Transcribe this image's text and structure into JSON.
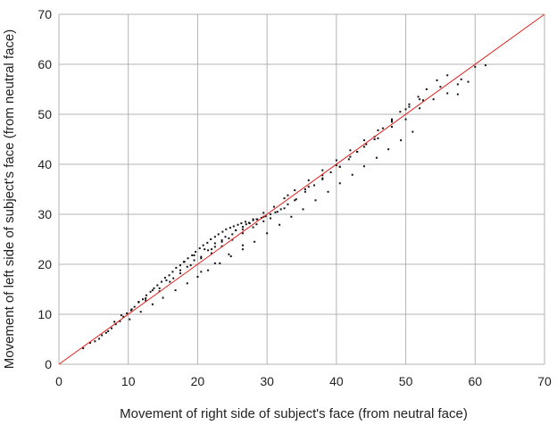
{
  "chart_data": {
    "type": "scatter",
    "xlabel": "Movement of right side of subject's face (from neutral face)",
    "ylabel": "Movement of left side of subject's face (from neutral face)",
    "xlim": [
      0,
      70
    ],
    "ylim": [
      0,
      70
    ],
    "x_ticks": [
      "0",
      "10",
      "20",
      "30",
      "40",
      "50",
      "60",
      "70"
    ],
    "y_ticks": [
      "0",
      "10",
      "20",
      "30",
      "40",
      "50",
      "60",
      "70"
    ],
    "grid": true,
    "legend": "none",
    "reference_line": {
      "from": [
        0,
        0
      ],
      "to": [
        70,
        70
      ],
      "color": "#e0201b"
    },
    "point_color": "#111111",
    "series": [
      {
        "x": [
          3.5,
          4.5,
          5.2,
          5.8,
          6.2,
          6.8,
          7.1,
          7.6,
          8.2,
          8.8,
          9.3,
          9.8,
          10.4,
          10.9,
          11.5,
          12.1,
          12.6,
          13.2,
          13.7,
          14.2,
          14.8,
          15.3,
          15.9,
          16.4,
          16.9,
          17.5,
          18.1,
          18.6,
          19.2,
          19.7,
          20.3,
          20.8,
          21.4,
          21.9,
          22.5,
          23.0,
          23.6,
          24.1,
          24.7,
          25.2,
          25.8,
          26.3,
          26.9,
          27.4,
          28.0,
          28.6,
          29.2,
          29.8,
          30.5,
          31.2,
          32.0,
          33.0,
          34.2,
          35.5,
          36.8,
          38.0,
          39.2,
          40.5,
          41.8,
          43.0,
          44.3,
          45.5,
          46.7,
          48.0,
          49.2,
          50.5,
          51.8,
          53.0,
          54.5,
          56.0,
          57.5,
          59.0,
          61.5,
          10.2,
          11.8,
          13.5,
          15.0,
          16.8,
          18.5,
          20.0,
          21.5,
          23.2,
          24.8,
          26.5,
          28.2,
          30.0,
          31.8,
          33.5,
          35.2,
          37.0,
          38.8,
          40.5,
          42.3,
          44.0,
          45.8,
          47.5,
          49.3,
          51.0,
          12.5,
          14.5,
          16.0,
          17.5,
          19.0,
          20.5,
          22.0,
          23.5,
          25.0,
          26.5,
          28.0,
          29.5,
          31.0,
          32.5,
          34.0,
          36.0,
          38.0,
          40.0,
          42.0,
          44.0,
          46.0,
          48.0,
          50.0,
          52.0,
          18.0,
          19.5,
          21.0,
          22.5,
          24.0,
          25.5,
          27.0,
          28.5,
          22.0,
          23.5,
          25.0,
          26.5,
          28.0,
          29.5,
          20.5,
          22.5,
          24.5,
          26.5,
          33.0,
          35.5,
          38.0,
          40.5,
          43.0,
          45.5,
          48.0,
          50.5,
          52.5,
          55.0,
          57.5,
          8.0,
          9.0,
          10.5,
          11.5,
          12.5,
          13.5,
          14.5,
          15.5,
          16.5,
          17.5,
          18.5,
          19.5,
          20.5,
          21.5,
          22.5,
          23.5,
          24.5,
          25.5,
          26.5,
          27.5,
          28.5,
          29.5,
          30.5,
          31.5,
          32.5,
          34.0,
          36.0,
          38.0,
          40.0,
          42.0,
          44.0,
          46.0,
          48.0,
          50.0,
          52.0,
          54.0,
          56.0,
          58.0,
          60.0
        ],
        "y": [
          3.2,
          4.3,
          4.6,
          5.1,
          5.8,
          6.3,
          6.6,
          7.2,
          8.0,
          8.6,
          9.5,
          10.2,
          10.8,
          11.5,
          12.4,
          13.0,
          13.8,
          14.5,
          15.2,
          15.8,
          16.5,
          17.3,
          17.8,
          18.5,
          19.3,
          19.8,
          20.5,
          21.2,
          21.8,
          22.5,
          23.2,
          23.8,
          24.3,
          25.0,
          25.5,
          26.0,
          26.5,
          27.0,
          27.3,
          27.6,
          27.9,
          28.2,
          28.5,
          28.3,
          28.8,
          29.0,
          29.3,
          29.6,
          30.0,
          30.4,
          31.0,
          32.0,
          33.0,
          34.5,
          35.8,
          37.0,
          38.4,
          39.5,
          41.0,
          42.5,
          44.0,
          45.5,
          47.2,
          49.0,
          50.5,
          52.0,
          53.5,
          55.0,
          56.8,
          57.8,
          54.0,
          56.5,
          59.8,
          9.0,
          10.5,
          12.0,
          13.3,
          14.8,
          16.2,
          17.5,
          18.8,
          20.2,
          21.6,
          23.0,
          24.5,
          26.2,
          27.9,
          29.5,
          31.0,
          32.8,
          34.5,
          36.2,
          37.9,
          39.6,
          41.3,
          43.0,
          44.8,
          46.5,
          12.8,
          14.6,
          16.5,
          18.2,
          19.8,
          21.5,
          23.0,
          24.5,
          26.0,
          27.5,
          29.0,
          30.3,
          31.5,
          33.2,
          34.8,
          36.8,
          38.8,
          40.8,
          42.8,
          44.8,
          46.8,
          48.8,
          51.0,
          53.0,
          20.5,
          21.8,
          23.0,
          24.2,
          25.5,
          26.8,
          28.0,
          29.0,
          22.2,
          23.6,
          24.9,
          26.2,
          27.4,
          28.6,
          18.5,
          20.2,
          22.0,
          23.8,
          33.8,
          35.0,
          37.2,
          39.5,
          42.5,
          45.0,
          48.5,
          51.5,
          52.8,
          55.5,
          56.0,
          8.5,
          9.8,
          11.0,
          12.5,
          13.2,
          14.8,
          15.2,
          16.8,
          17.2,
          18.8,
          19.5,
          20.8,
          21.2,
          22.8,
          23.5,
          24.8,
          25.2,
          26.8,
          27.0,
          28.2,
          28.0,
          29.5,
          29.2,
          30.5,
          31.2,
          32.8,
          35.5,
          37.8,
          39.8,
          41.5,
          43.5,
          45.2,
          47.5,
          49.0,
          51.2,
          53.0,
          54.2,
          57.0,
          59.5
        ]
      }
    ]
  }
}
